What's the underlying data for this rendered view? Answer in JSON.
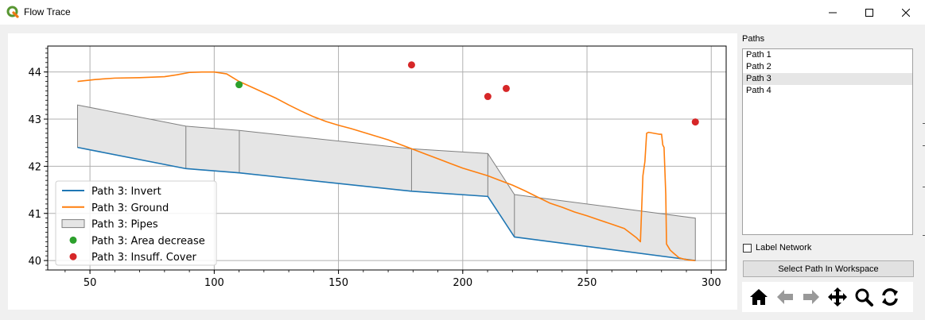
{
  "window": {
    "title": "Flow Trace",
    "minimize_glyph": "–",
    "maximize_glyph": "☐",
    "close_glyph": "✕"
  },
  "sidebar": {
    "paths_label": "Paths",
    "paths": [
      "Path 1",
      "Path 2",
      "Path 3",
      "Path 4"
    ],
    "selected_path": "Path 3",
    "label_network": "Label Network",
    "label_network_checked": false,
    "select_button": "Select Path In Workspace"
  },
  "toolbar": {
    "icons": [
      "home-icon",
      "back-arrow-icon",
      "forward-arrow-icon",
      "pan-icon",
      "zoom-icon",
      "refresh-icon"
    ]
  },
  "chart_data": {
    "type": "line",
    "title": "",
    "xlabel": "",
    "ylabel": "",
    "xlim": [
      33,
      306
    ],
    "ylim": [
      39.8,
      44.55
    ],
    "xticks": [
      50,
      100,
      150,
      200,
      250,
      300
    ],
    "yticks": [
      40,
      41,
      42,
      43,
      44
    ],
    "grid": true,
    "legend_position": "lower-left",
    "colors": {
      "invert": "#1f77b4",
      "ground": "#ff7f0e",
      "pipes_fill": "#e5e5e5",
      "pipes_edge": "#808080",
      "area_decrease": "#2ca02c",
      "insuff_cover": "#d62728"
    },
    "series": [
      {
        "name": "Path 3: Invert",
        "type": "line",
        "x": [
          45,
          88.6,
          110.1,
          179.4,
          210.1,
          220.8,
          293.6
        ],
        "y": [
          42.4,
          41.95,
          41.86,
          41.47,
          41.36,
          40.5,
          40.0
        ]
      },
      {
        "name": "Path 3: Ground",
        "type": "line",
        "x": [
          45,
          52,
          60,
          70,
          80,
          85,
          90,
          95,
          100,
          105,
          110,
          115,
          120,
          125,
          130,
          135,
          140,
          145,
          150,
          155,
          160,
          165,
          170,
          175,
          180,
          185,
          190,
          195,
          200,
          205,
          210,
          215,
          220,
          225,
          230,
          235,
          240,
          245,
          250,
          255,
          260,
          265,
          270,
          271.5,
          272.5,
          273.3,
          274,
          274.8,
          279,
          280,
          280.5,
          281,
          281.7,
          282,
          283.5,
          285,
          287,
          289,
          291,
          293.6
        ],
        "y": [
          43.8,
          43.84,
          43.87,
          43.88,
          43.9,
          43.94,
          43.99,
          44.0,
          44.0,
          43.96,
          43.8,
          43.68,
          43.56,
          43.44,
          43.3,
          43.17,
          43.05,
          42.95,
          42.87,
          42.8,
          42.72,
          42.64,
          42.56,
          42.46,
          42.36,
          42.26,
          42.16,
          42.06,
          41.96,
          41.88,
          41.8,
          41.7,
          41.6,
          41.48,
          41.35,
          41.22,
          41.13,
          41.03,
          40.95,
          40.86,
          40.77,
          40.68,
          40.48,
          40.4,
          41.8,
          42.1,
          42.7,
          42.72,
          42.68,
          42.68,
          42.45,
          42.4,
          41.4,
          40.35,
          40.22,
          40.15,
          40.06,
          40.03,
          40.01,
          40.0
        ]
      }
    ],
    "pipes": {
      "name": "Path 3: Pipes",
      "type": "area",
      "x": [
        45,
        88.6,
        110.1,
        179.4,
        210.1,
        220.8,
        293.6
      ],
      "top": [
        43.3,
        42.85,
        42.76,
        42.37,
        42.27,
        41.4,
        40.9
      ],
      "bottom": [
        42.4,
        41.95,
        41.86,
        41.47,
        41.36,
        40.5,
        40.0
      ]
    },
    "area_decrease": {
      "name": "Path 3: Area decrease",
      "type": "scatter",
      "points": [
        [
          110,
          43.73
        ]
      ]
    },
    "insuff_cover": {
      "name": "Path 3: Insuff. Cover",
      "type": "scatter",
      "points": [
        [
          179.4,
          44.15
        ],
        [
          210.1,
          43.48
        ],
        [
          217.5,
          43.65
        ],
        [
          293.6,
          42.94
        ]
      ]
    },
    "legend": [
      "Path 3: Invert",
      "Path 3: Ground",
      "Path 3: Pipes",
      "Path 3: Area decrease",
      "Path 3: Insuff. Cover"
    ]
  }
}
